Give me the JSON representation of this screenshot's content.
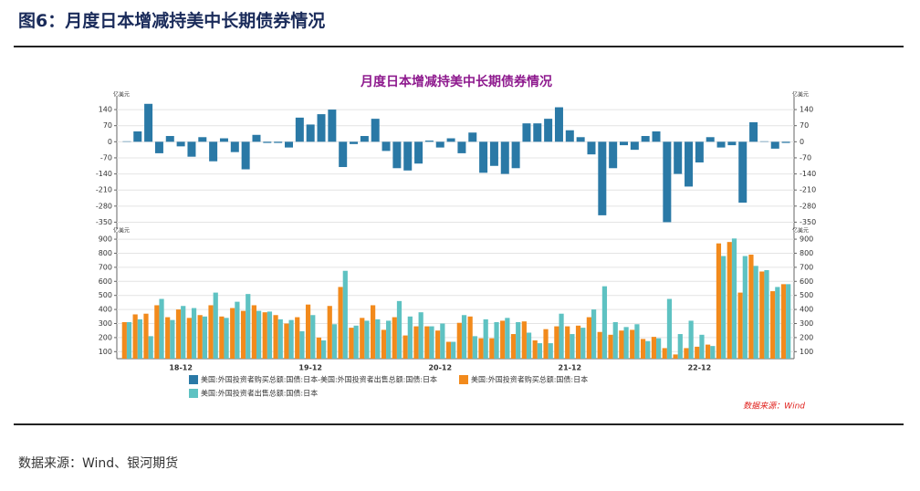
{
  "header": {
    "title": "图6：月度日本增减持美中长期债券情况"
  },
  "chart_data": [
    {
      "type": "bar",
      "title": "月度日本增减持美中长期债券情况",
      "unit": "亿美元",
      "series": [
        {
          "name": "美国:外国投资者购买总额:国债:日本-美国:外国投资者出售总额:国债:日本",
          "color": "#2a79a6",
          "values": [
            2,
            45,
            165,
            -50,
            25,
            -20,
            -65,
            20,
            -85,
            15,
            -45,
            -120,
            30,
            -5,
            -5,
            -25,
            105,
            75,
            120,
            140,
            -110,
            -10,
            25,
            100,
            -40,
            -115,
            -125,
            -95,
            5,
            -25,
            15,
            -50,
            40,
            -135,
            -105,
            -140,
            -115,
            80,
            80,
            100,
            150,
            50,
            20,
            -55,
            -320,
            -115,
            -15,
            -35,
            25,
            45,
            -350,
            -140,
            -195,
            -90,
            20,
            -25,
            -15,
            -265,
            85,
            2,
            -30,
            -5
          ]
        }
      ],
      "ylim": [
        -380,
        180
      ],
      "yticks": [
        140,
        70,
        0,
        -70,
        -140,
        -210,
        -280,
        -350
      ],
      "grid": true
    },
    {
      "type": "grouped_bar",
      "unit": "亿美元",
      "categories": [
        null,
        null,
        null,
        null,
        null,
        "18-12",
        null,
        null,
        null,
        null,
        null,
        null,
        null,
        null,
        null,
        null,
        null,
        "19-12",
        null,
        null,
        null,
        null,
        null,
        null,
        null,
        null,
        null,
        null,
        null,
        "20-12",
        null,
        null,
        null,
        null,
        null,
        null,
        null,
        null,
        null,
        null,
        null,
        "21-12",
        null,
        null,
        null,
        null,
        null,
        null,
        null,
        null,
        null,
        null,
        null,
        "22-12",
        null,
        null,
        null,
        null,
        null,
        null,
        null,
        null
      ],
      "series": [
        {
          "name": "美国:外国投资者购买总额:国债:日本",
          "color": "#f28a1c",
          "values": [
            310,
            365,
            370,
            430,
            345,
            400,
            340,
            360,
            430,
            350,
            410,
            390,
            430,
            380,
            360,
            300,
            345,
            435,
            200,
            425,
            560,
            270,
            340,
            430,
            255,
            345,
            215,
            280,
            280,
            250,
            170,
            305,
            350,
            195,
            195,
            320,
            225,
            315,
            180,
            260,
            280,
            280,
            285,
            345,
            240,
            220,
            250,
            255,
            190,
            205,
            125,
            80,
            125,
            135,
            150,
            870,
            880,
            520,
            790,
            670,
            530,
            580
          ]
        },
        {
          "name": "美国:外国投资者出售总额:国债:日本",
          "color": "#5ec2c2",
          "values": [
            310,
            330,
            210,
            475,
            325,
            425,
            410,
            350,
            520,
            340,
            455,
            510,
            390,
            385,
            330,
            325,
            245,
            360,
            180,
            295,
            675,
            285,
            320,
            330,
            320,
            460,
            350,
            380,
            280,
            300,
            170,
            360,
            210,
            330,
            310,
            340,
            310,
            235,
            160,
            160,
            370,
            225,
            270,
            400,
            565,
            310,
            275,
            295,
            175,
            195,
            475,
            225,
            320,
            220,
            140,
            780,
            905,
            780,
            710,
            680,
            560,
            580
          ]
        }
      ],
      "ylim": [
        50,
        920
      ],
      "yticks": [
        100,
        200,
        300,
        400,
        500,
        600,
        700,
        800,
        900
      ],
      "grid": true
    }
  ],
  "chart_source": "数据来源：Wind",
  "footer": {
    "source": "数据来源：Wind、银河期货"
  }
}
